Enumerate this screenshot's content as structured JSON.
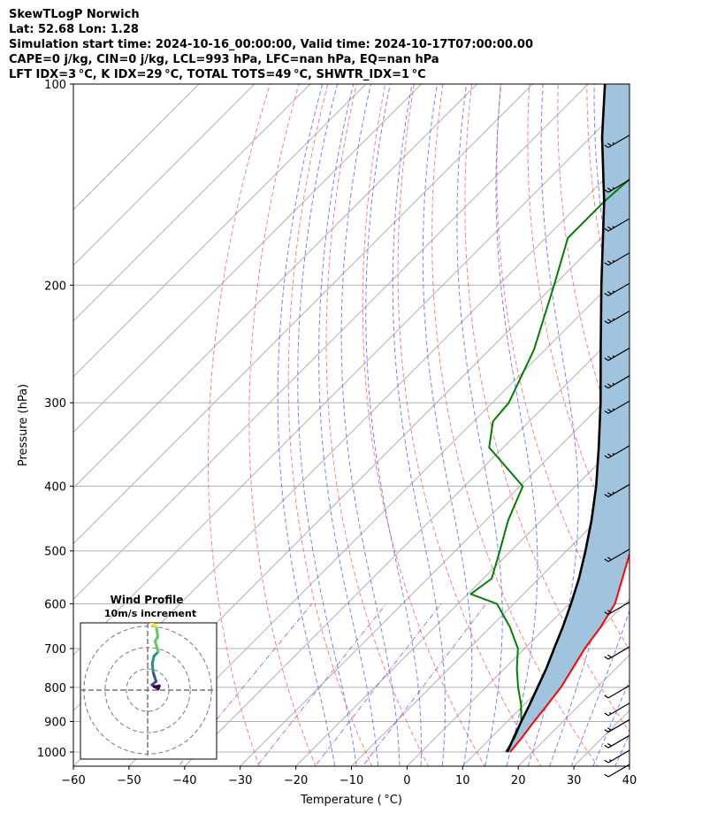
{
  "header": {
    "title": "SkewTLogP Norwich",
    "location": "Lat: 52.68   Lon: 1.28",
    "times": "Simulation start time: 2024-10-16_00:00:00, Valid time: 2024-10-17T07:00:00.00",
    "indices": "CAPE=0 j/kg, CIN=0 j/kg, LCL=993 hPa, LFC=nan hPa, EQ=nan hPa",
    "indices2": "LFT IDX=3 °C, K IDX=29 °C, TOTAL TOTS=49 °C, SHWTR_IDX=1 °C"
  },
  "colors": {
    "temperature": "#ff0000",
    "dewpoint": "#008000",
    "parcel": "#000000",
    "cape_fill": "#a1c4de",
    "dry_adiabat": "#ff6666",
    "moist_adiabat": "#5a6cff",
    "mixing_ratio": "#9e50c8",
    "isotherm": "#b0b0b0",
    "hodo_colors": [
      "#440154",
      "#3b528b",
      "#21918c",
      "#5ec962",
      "#fde725"
    ]
  },
  "chart_data": {
    "type": "line",
    "xlabel": "Temperature ( °C)",
    "ylabel": "Pressure (hPa)",
    "xlim": [
      -60,
      40
    ],
    "ylim": [
      1050,
      100
    ],
    "y_scale": "log",
    "xticks": [
      "−60",
      "−50",
      "−40",
      "−30",
      "−20",
      "−10",
      "0",
      "10",
      "20",
      "30",
      "40"
    ],
    "yticks": [
      1000,
      900,
      800,
      700,
      600,
      500,
      400,
      300,
      200,
      100
    ],
    "grid": true,
    "series": [
      {
        "key": "temperature",
        "points": [
          [
            1000,
            16
          ],
          [
            950,
            15.5
          ],
          [
            900,
            14.8
          ],
          [
            850,
            14.2
          ],
          [
            800,
            13.5
          ],
          [
            750,
            12.2
          ],
          [
            700,
            10.8
          ],
          [
            650,
            9.8
          ],
          [
            600,
            8.2
          ],
          [
            550,
            5
          ],
          [
            500,
            1.5
          ],
          [
            450,
            -2.8
          ],
          [
            400,
            -6.5
          ],
          [
            350,
            -10.5
          ],
          [
            300,
            -15.5
          ],
          [
            275,
            -18.5
          ],
          [
            250,
            -22.5
          ],
          [
            225,
            -26
          ],
          [
            200,
            -29.5
          ],
          [
            175,
            -32
          ],
          [
            150,
            -35
          ],
          [
            125,
            -39.5
          ],
          [
            110,
            -43.5
          ],
          [
            100,
            -47
          ]
        ]
      },
      {
        "key": "dewpoint",
        "points": [
          [
            1000,
            15.2
          ],
          [
            950,
            14.2
          ],
          [
            900,
            12.5
          ],
          [
            850,
            9.5
          ],
          [
            800,
            5.8
          ],
          [
            750,
            2.2
          ],
          [
            700,
            -1.2
          ],
          [
            650,
            -6.5
          ],
          [
            600,
            -13
          ],
          [
            580,
            -19.5
          ],
          [
            550,
            -18.5
          ],
          [
            500,
            -22
          ],
          [
            450,
            -26
          ],
          [
            400,
            -29.5
          ],
          [
            350,
            -42.5
          ],
          [
            320,
            -46.5
          ],
          [
            300,
            -47
          ],
          [
            250,
            -52
          ],
          [
            200,
            -60
          ],
          [
            170,
            -66
          ],
          [
            150,
            -66
          ],
          [
            130,
            -65
          ],
          [
            110,
            -62
          ],
          [
            100,
            -61
          ]
        ]
      },
      {
        "key": "parcel",
        "points": [
          [
            1000,
            15.5
          ],
          [
            950,
            14
          ],
          [
            900,
            12.5
          ],
          [
            850,
            11
          ],
          [
            800,
            9.3
          ],
          [
            750,
            7.5
          ],
          [
            700,
            5.3
          ],
          [
            650,
            3
          ],
          [
            600,
            0.3
          ],
          [
            550,
            -2.8
          ],
          [
            500,
            -6.6
          ],
          [
            450,
            -11
          ],
          [
            400,
            -16.3
          ],
          [
            350,
            -22.8
          ],
          [
            300,
            -30.5
          ],
          [
            250,
            -40
          ],
          [
            200,
            -51.5
          ],
          [
            150,
            -66
          ],
          [
            120,
            -78
          ],
          [
            100,
            -87
          ]
        ]
      }
    ],
    "wind_barbs": [
      {
        "p": 1050,
        "speed_kt": 10
      },
      {
        "p": 1000,
        "speed_kt": 15
      },
      {
        "p": 950,
        "speed_kt": 20
      },
      {
        "p": 900,
        "speed_kt": 20
      },
      {
        "p": 850,
        "speed_kt": 15
      },
      {
        "p": 800,
        "speed_kt": 10
      },
      {
        "p": 700,
        "speed_kt": 20
      },
      {
        "p": 600,
        "speed_kt": 20
      },
      {
        "p": 500,
        "speed_kt": 20
      },
      {
        "p": 400,
        "speed_kt": 25
      },
      {
        "p": 350,
        "speed_kt": 25
      },
      {
        "p": 300,
        "speed_kt": 25
      },
      {
        "p": 275,
        "speed_kt": 25
      },
      {
        "p": 250,
        "speed_kt": 25
      },
      {
        "p": 220,
        "speed_kt": 25
      },
      {
        "p": 200,
        "speed_kt": 25
      },
      {
        "p": 180,
        "speed_kt": 25
      },
      {
        "p": 160,
        "speed_kt": 25
      },
      {
        "p": 140,
        "speed_kt": 25
      },
      {
        "p": 120,
        "speed_kt": 25
      }
    ],
    "hodograph": {
      "title": "Wind Profile",
      "subtitle": "10m/s increment",
      "rings_ms": [
        10,
        20,
        30
      ],
      "range_ms": 32,
      "points": [
        [
          3,
          1.5
        ],
        [
          5.5,
          2
        ],
        [
          5,
          0.5
        ],
        [
          3.5,
          1.5
        ],
        [
          2,
          2.5
        ],
        [
          4,
          4
        ],
        [
          3,
          7
        ],
        [
          2.5,
          9
        ],
        [
          2.2,
          12.5
        ],
        [
          3,
          16
        ],
        [
          5,
          18
        ],
        [
          3.5,
          23
        ],
        [
          4.8,
          25
        ],
        [
          4,
          30
        ],
        [
          1.5,
          32
        ],
        [
          -0.5,
          37
        ]
      ]
    }
  }
}
